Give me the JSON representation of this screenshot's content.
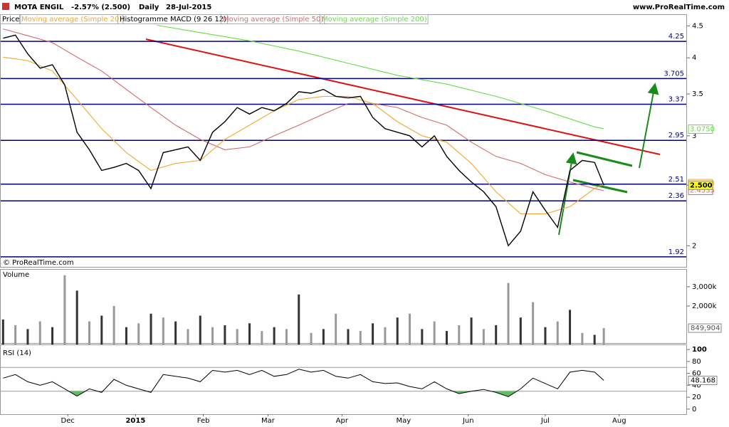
{
  "chart_data": [
    {
      "type": "line",
      "title": "MOTA ENGIL",
      "subtitle": "-2.57% (2.500)",
      "period": "Daily",
      "date": "28-Jul-2015",
      "source": "www.ProRealTime.com",
      "copyright": "© ProRealTime.com",
      "indicators": [
        "Histogramme MACD (9 26 12)"
      ],
      "log": true,
      "ylim": [
        1.85,
        4.54
      ],
      "yticks": [
        4.5,
        4,
        3.5,
        3,
        2.5,
        2
      ],
      "xlim": [
        -1,
        222
      ],
      "xticks": [
        {
          "value": 21,
          "label": "Dec"
        },
        {
          "value": 43,
          "label": "2015"
        },
        {
          "value": 65,
          "label": "Feb"
        },
        {
          "value": 86,
          "label": "Mar"
        },
        {
          "value": 110,
          "label": "Apr"
        },
        {
          "value": 130,
          "label": "May"
        },
        {
          "value": 151,
          "label": "Jun"
        },
        {
          "value": 176,
          "label": "Jul"
        },
        {
          "value": 200,
          "label": "Aug"
        }
      ],
      "levels": [
        4.25,
        3.705,
        3.37,
        2.95,
        2.51,
        2.36,
        1.92
      ],
      "level_color": "#000080",
      "series": [
        {
          "name": "Price",
          "color": "#000000",
          "x": [
            0,
            4,
            8,
            12,
            16,
            20,
            24,
            28,
            32,
            36,
            40,
            44,
            48,
            52,
            56,
            60,
            64,
            68,
            72,
            76,
            80,
            84,
            88,
            92,
            96,
            100,
            104,
            108,
            112,
            116,
            120,
            124,
            128,
            132,
            136,
            140,
            144,
            148,
            152,
            156,
            160,
            164,
            168,
            172,
            176,
            180,
            184,
            188,
            192,
            195
          ],
          "values": [
            4.3,
            4.35,
            4.06,
            3.85,
            3.9,
            3.62,
            3.04,
            2.85,
            2.64,
            2.67,
            2.71,
            2.64,
            2.47,
            2.82,
            2.85,
            2.88,
            2.74,
            3.04,
            3.16,
            3.33,
            3.25,
            3.33,
            3.29,
            3.38,
            3.53,
            3.51,
            3.56,
            3.47,
            3.45,
            3.47,
            3.21,
            3.08,
            3.04,
            3.0,
            2.88,
            3.0,
            2.78,
            2.64,
            2.53,
            2.44,
            2.31,
            2.0,
            2.11,
            2.44,
            2.28,
            2.14,
            2.64,
            2.74,
            2.72,
            2.5
          ]
        },
        {
          "name": "Moving average (Simple 20)",
          "color": "#f0a830",
          "x": [
            0,
            8,
            16,
            24,
            32,
            40,
            48,
            56,
            64,
            72,
            80,
            88,
            96,
            104,
            112,
            120,
            128,
            136,
            144,
            152,
            160,
            168,
            176,
            184,
            192,
            195
          ],
          "values": [
            4.01,
            3.96,
            3.81,
            3.43,
            3.08,
            2.82,
            2.64,
            2.71,
            2.74,
            2.96,
            3.12,
            3.29,
            3.43,
            3.47,
            3.47,
            3.38,
            3.16,
            3.0,
            2.93,
            2.71,
            2.44,
            2.25,
            2.25,
            2.31,
            2.47,
            2.51
          ]
        },
        {
          "name": "Moving average (Simple 50)",
          "color": "#d06a6a",
          "x": [
            0,
            8,
            16,
            24,
            32,
            40,
            48,
            56,
            64,
            72,
            80,
            88,
            96,
            104,
            112,
            120,
            128,
            136,
            144,
            152,
            160,
            168,
            176,
            184,
            192,
            195
          ],
          "values": [
            4.45,
            4.34,
            4.23,
            4.01,
            3.81,
            3.56,
            3.33,
            3.12,
            2.96,
            2.85,
            2.88,
            3.0,
            3.12,
            3.25,
            3.38,
            3.38,
            3.33,
            3.21,
            3.12,
            2.93,
            2.78,
            2.71,
            2.6,
            2.53,
            2.47,
            2.45
          ]
        },
        {
          "name": "Moving average (Simple 200)",
          "color": "#66dd44",
          "x": [
            50,
            64,
            80,
            96,
            112,
            128,
            144,
            160,
            176,
            192,
            195
          ],
          "values": [
            4.51,
            4.39,
            4.26,
            4.1,
            3.92,
            3.75,
            3.63,
            3.47,
            3.29,
            3.1,
            3.08
          ]
        }
      ],
      "last_labels": [
        {
          "value": 3.075,
          "label": "3.0750",
          "color": "#66dd44"
        },
        {
          "value": 2.5143,
          "label": "2.5143",
          "color": "#f0a830"
        },
        {
          "value": 2.4535,
          "label": "2.4535",
          "color": "#d06a6a"
        },
        {
          "value": 2.5,
          "label": "2.500",
          "color": "#ffff00"
        }
      ]
    },
    {
      "type": "bar",
      "title": "Volume",
      "color": "#333333",
      "ylim": [
        0,
        3850000
      ],
      "yticks": [
        {
          "value": 2000000,
          "label": "2,000k"
        },
        {
          "value": 3000000,
          "label": "3,000k"
        }
      ],
      "x": [
        0,
        4,
        8,
        12,
        16,
        20,
        24,
        28,
        32,
        36,
        40,
        44,
        48,
        52,
        56,
        60,
        64,
        68,
        72,
        76,
        80,
        84,
        88,
        92,
        96,
        100,
        104,
        108,
        112,
        116,
        120,
        124,
        128,
        132,
        136,
        140,
        144,
        148,
        152,
        156,
        160,
        164,
        168,
        172,
        176,
        180,
        184,
        188,
        192,
        195
      ],
      "values": [
        1300000,
        1000000,
        800000,
        1200000,
        900000,
        3600000,
        2800000,
        1200000,
        1500000,
        2000000,
        900000,
        1100000,
        1600000,
        1400000,
        1200000,
        800000,
        1500000,
        900000,
        1000000,
        800000,
        1100000,
        700000,
        900000,
        800000,
        2600000,
        600000,
        800000,
        1600000,
        800000,
        700000,
        1100000,
        900000,
        1400000,
        1600000,
        800000,
        1200000,
        700000,
        1000000,
        1400000,
        800000,
        1000000,
        3200000,
        1400000,
        2200000,
        900000,
        1200000,
        1800000,
        600000,
        500000,
        849904
      ],
      "last_value_label": "849,904"
    },
    {
      "type": "line",
      "title": "RSI (14)",
      "color": "#000000",
      "fill": "#66bb66",
      "ylim": [
        -8.5,
        108.5
      ],
      "yticks": [
        0,
        20,
        40,
        60,
        80,
        100
      ],
      "levels": [
        30,
        70
      ],
      "x": [
        0,
        4,
        8,
        12,
        16,
        20,
        24,
        28,
        32,
        36,
        40,
        44,
        48,
        52,
        56,
        60,
        64,
        68,
        72,
        76,
        80,
        84,
        88,
        92,
        96,
        100,
        104,
        108,
        112,
        116,
        120,
        124,
        128,
        132,
        136,
        140,
        144,
        148,
        152,
        156,
        160,
        164,
        168,
        172,
        176,
        180,
        184,
        188,
        192,
        195
      ],
      "values": [
        52,
        58,
        46,
        40,
        46,
        34,
        22,
        34,
        28,
        50,
        40,
        34,
        28,
        58,
        55,
        52,
        46,
        65,
        62,
        65,
        58,
        65,
        55,
        58,
        67,
        62,
        65,
        55,
        52,
        58,
        46,
        43,
        44,
        38,
        34,
        46,
        34,
        26,
        30,
        33,
        28,
        21,
        34,
        52,
        43,
        34,
        62,
        65,
        62,
        48.168
      ]
    }
  ]
}
